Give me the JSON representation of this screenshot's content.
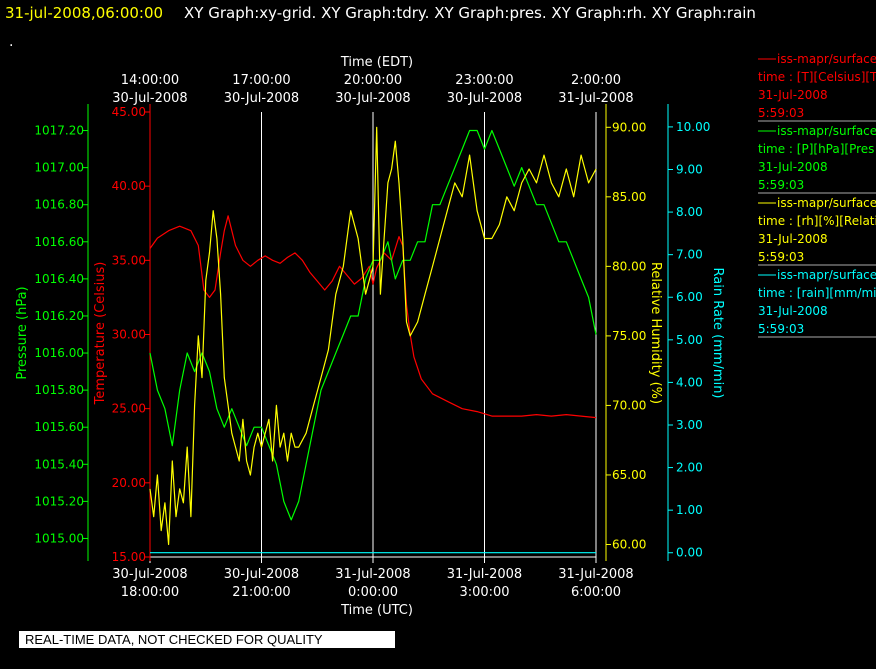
{
  "header": {
    "timestamp": "31-jul-2008,06:00:00",
    "graphs": "XY Graph:xy-grid.  XY Graph:tdry.  XY Graph:pres.  XY Graph:rh.  XY Graph:rain",
    "dot": "."
  },
  "quality_banner": "REAL-TIME DATA, NOT CHECKED FOR QUALITY",
  "colors": {
    "background": "#000000",
    "timestamp": "#ffff00",
    "temperature": "#ff0000",
    "pressure": "#00ff00",
    "humidity": "#ffff00",
    "rain": "#00ffff",
    "grid": "#ffffff"
  },
  "legend": [
    {
      "name": "iss-mapr/surface",
      "line2": "time : [T][Celsius][T",
      "line3": "31-Jul-2008",
      "line4": "5:59:03",
      "color": "#ff0000"
    },
    {
      "name": "iss-mapr/surface",
      "line2": "time : [P][hPa][Pres",
      "line3": "31-Jul-2008",
      "line4": "5:59:03",
      "color": "#00ff00"
    },
    {
      "name": "iss-mapr/surface",
      "line2": "time : [rh][%][Relati",
      "line3": "31-Jul-2008",
      "line4": "5:59:03",
      "color": "#ffff00"
    },
    {
      "name": "iss-mapr/surface",
      "line2": "time : [rain][mm/min",
      "line3": "31-Jul-2008",
      "line4": "5:59:03",
      "color": "#00ffff"
    }
  ],
  "chart_data": {
    "type": "line",
    "x_range_utc": [
      "30-Jul-2008 18:00:00",
      "31-Jul-2008 06:00:00"
    ],
    "top_axis": {
      "label": "Time (EDT)",
      "ticks": [
        {
          "time": "14:00:00",
          "date": "30-Jul-2008",
          "utc_hours": 0
        },
        {
          "time": "17:00:00",
          "date": "30-Jul-2008",
          "utc_hours": 3
        },
        {
          "time": "20:00:00",
          "date": "30-Jul-2008",
          "utc_hours": 6
        },
        {
          "time": "23:00:00",
          "date": "30-Jul-2008",
          "utc_hours": 9
        },
        {
          "time": "2:00:00",
          "date": "31-Jul-2008",
          "utc_hours": 12
        }
      ]
    },
    "bottom_axis": {
      "label": "Time (UTC)",
      "ticks": [
        {
          "date": "30-Jul-2008",
          "time": "18:00:00",
          "utc_hours": 0
        },
        {
          "date": "30-Jul-2008",
          "time": "21:00:00",
          "utc_hours": 3
        },
        {
          "date": "31-Jul-2008",
          "time": "0:00:00",
          "utc_hours": 6
        },
        {
          "date": "31-Jul-2008",
          "time": "3:00:00",
          "utc_hours": 9
        },
        {
          "date": "31-Jul-2008",
          "time": "6:00:00",
          "utc_hours": 12
        }
      ]
    },
    "axes": {
      "pressure": {
        "label": "Pressure (hPa)",
        "range": [
          1014.9,
          1017.3
        ],
        "ticks": [
          "1015.00",
          "1015.20",
          "1015.40",
          "1015.60",
          "1015.80",
          "1016.00",
          "1016.20",
          "1016.40",
          "1016.60",
          "1016.80",
          "1017.00",
          "1017.20"
        ]
      },
      "temperature": {
        "label": "Temperature (Celsius)",
        "range": [
          15,
          45
        ],
        "ticks": [
          "15.00",
          "20.00",
          "25.00",
          "30.00",
          "35.00",
          "40.00",
          "45.00"
        ]
      },
      "humidity": {
        "label": "Relative Humidity (%)",
        "range": [
          59.1,
          91.1
        ],
        "ticks": [
          "60.00",
          "65.00",
          "70.00",
          "75.00",
          "80.00",
          "85.00",
          "90.00"
        ]
      },
      "rain": {
        "label": "Rain Rate (mm/min)",
        "range": [
          -0.1,
          10.35
        ],
        "ticks": [
          "0.00",
          "1.00",
          "2.00",
          "3.00",
          "4.00",
          "5.00",
          "6.00",
          "7.00",
          "8.00",
          "9.00",
          "10.00"
        ]
      }
    },
    "grid": true,
    "series": [
      {
        "name": "iss-mapr/surface [T][Celsius]",
        "axis": "temperature",
        "color": "#ff0000",
        "x": [
          0,
          0.2,
          0.5,
          0.8,
          1.1,
          1.3,
          1.45,
          1.6,
          1.75,
          1.9,
          2.0,
          2.1,
          2.3,
          2.5,
          2.7,
          2.9,
          3.1,
          3.3,
          3.5,
          3.7,
          3.9,
          4.1,
          4.3,
          4.5,
          4.7,
          4.9,
          5.1,
          5.3,
          5.5,
          5.7,
          5.9,
          6.0,
          6.1,
          6.3,
          6.5,
          6.7,
          6.8,
          6.9,
          7.0,
          7.1,
          7.3,
          7.6,
          8.0,
          8.4,
          8.8,
          9.2,
          9.6,
          10.0,
          10.4,
          10.8,
          11.2,
          11.6,
          12.0
        ],
        "y": [
          35.8,
          36.5,
          37.0,
          37.3,
          37.0,
          36.0,
          33.0,
          32.5,
          33.0,
          35.5,
          37.0,
          38.0,
          36.0,
          35.0,
          34.6,
          35.0,
          35.3,
          35.0,
          34.8,
          35.2,
          35.5,
          35.0,
          34.2,
          33.6,
          33.0,
          33.6,
          34.6,
          34.0,
          33.4,
          33.8,
          34.6,
          33.4,
          34.5,
          35.5,
          35.0,
          36.6,
          36.0,
          32.0,
          30.0,
          28.5,
          27.0,
          26.0,
          25.5,
          25.0,
          24.8,
          24.5,
          24.5,
          24.5,
          24.6,
          24.5,
          24.6,
          24.5,
          24.4
        ]
      },
      {
        "name": "iss-mapr/surface [P][hPa]",
        "axis": "pressure",
        "color": "#00ff00",
        "x": [
          0,
          0.2,
          0.4,
          0.6,
          0.8,
          1.0,
          1.2,
          1.4,
          1.6,
          1.8,
          2.0,
          2.2,
          2.4,
          2.6,
          2.8,
          3.0,
          3.2,
          3.4,
          3.6,
          3.8,
          4.0,
          4.2,
          4.4,
          4.6,
          4.8,
          5.0,
          5.2,
          5.4,
          5.6,
          5.8,
          6.0,
          6.2,
          6.4,
          6.6,
          6.8,
          7.0,
          7.2,
          7.4,
          7.6,
          7.8,
          8.0,
          8.2,
          8.4,
          8.6,
          8.8,
          9.0,
          9.2,
          9.4,
          9.6,
          9.8,
          10.0,
          10.2,
          10.4,
          10.6,
          10.8,
          11.0,
          11.2,
          11.4,
          11.6,
          11.8,
          12.0
        ],
        "y": [
          1016.0,
          1015.8,
          1015.7,
          1015.5,
          1015.8,
          1016.0,
          1015.9,
          1016.0,
          1015.9,
          1015.7,
          1015.6,
          1015.7,
          1015.6,
          1015.5,
          1015.6,
          1015.6,
          1015.5,
          1015.4,
          1015.2,
          1015.1,
          1015.2,
          1015.4,
          1015.6,
          1015.8,
          1015.9,
          1016.0,
          1016.1,
          1016.2,
          1016.2,
          1016.4,
          1016.5,
          1016.5,
          1016.6,
          1016.4,
          1016.5,
          1016.5,
          1016.6,
          1016.6,
          1016.8,
          1016.8,
          1016.9,
          1017.0,
          1017.1,
          1017.2,
          1017.2,
          1017.1,
          1017.2,
          1017.1,
          1017.0,
          1016.9,
          1017.0,
          1016.9,
          1016.8,
          1016.8,
          1016.7,
          1016.6,
          1016.6,
          1016.5,
          1016.4,
          1016.3,
          1016.1
        ]
      },
      {
        "name": "iss-mapr/surface [rh][%]",
        "axis": "humidity",
        "color": "#ffff00",
        "x": [
          0,
          0.1,
          0.2,
          0.3,
          0.4,
          0.5,
          0.6,
          0.7,
          0.8,
          0.9,
          1.0,
          1.1,
          1.2,
          1.3,
          1.4,
          1.5,
          1.6,
          1.7,
          1.8,
          1.9,
          2.0,
          2.1,
          2.2,
          2.3,
          2.4,
          2.5,
          2.6,
          2.7,
          2.8,
          2.9,
          3.0,
          3.1,
          3.2,
          3.3,
          3.4,
          3.5,
          3.6,
          3.7,
          3.8,
          3.9,
          4.0,
          4.2,
          4.4,
          4.6,
          4.8,
          5.0,
          5.2,
          5.4,
          5.6,
          5.8,
          6.0,
          6.1,
          6.2,
          6.3,
          6.4,
          6.5,
          6.6,
          6.7,
          6.8,
          6.9,
          7.0,
          7.2,
          7.4,
          7.6,
          7.8,
          8.0,
          8.2,
          8.4,
          8.6,
          8.8,
          9.0,
          9.2,
          9.4,
          9.6,
          9.8,
          10.0,
          10.2,
          10.4,
          10.6,
          10.8,
          11.0,
          11.2,
          11.4,
          11.6,
          11.8,
          12.0
        ],
        "y": [
          64,
          62,
          65,
          61,
          63,
          60,
          66,
          62,
          64,
          63,
          67,
          62,
          70,
          75,
          72,
          79,
          81,
          84,
          82,
          78,
          72,
          70,
          68,
          67,
          66,
          69,
          66,
          65,
          67,
          68,
          67,
          68,
          69,
          66,
          70,
          67,
          68,
          66,
          68,
          67,
          67,
          68,
          70,
          72,
          74,
          78,
          80,
          84,
          82,
          78,
          80,
          90,
          78,
          82,
          86,
          87,
          89,
          86,
          82,
          76,
          75,
          76,
          78,
          80,
          82,
          84,
          86,
          85,
          88,
          84,
          82,
          82,
          83,
          85,
          84,
          86,
          87,
          86,
          88,
          86,
          85,
          87,
          85,
          88,
          86,
          87
        ]
      },
      {
        "name": "iss-mapr/surface [rain][mm/min]",
        "axis": "rain",
        "color": "#00ffff",
        "x": [
          0,
          12
        ],
        "y": [
          0,
          0
        ]
      }
    ]
  }
}
